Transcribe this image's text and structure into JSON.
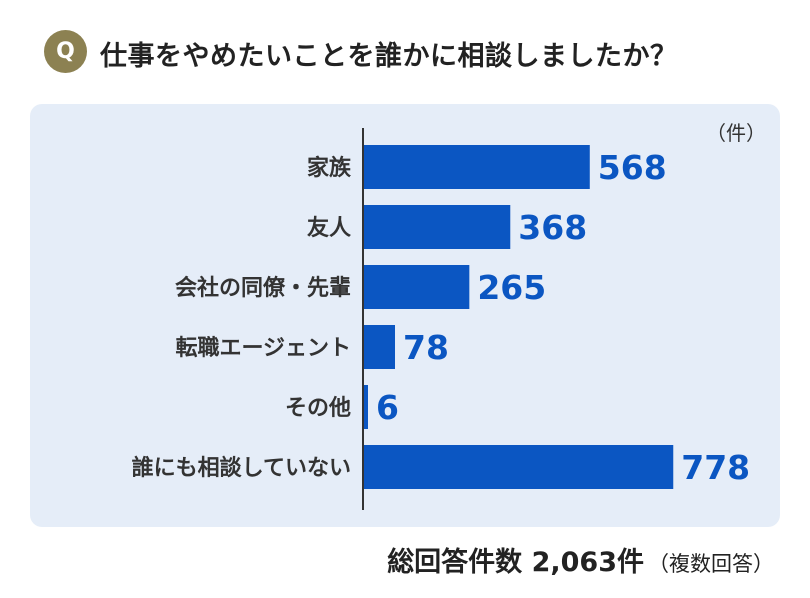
{
  "question": {
    "badge": "Q",
    "text": "仕事をやめたいことを誰かに相談しましたか？"
  },
  "footer": {
    "total": "総回答件数 2,063件",
    "note": "（複数回答）"
  },
  "colors": {
    "bar": "#0b56c2",
    "value_label": "#0b56c2",
    "panel_background": "#e5edf8",
    "badge": "#8c8152"
  },
  "chart_data": {
    "type": "bar",
    "orientation": "horizontal",
    "unit_label": "（件）",
    "categories": [
      "家族",
      "友人",
      "会社の同僚・先輩",
      "転職エージェント",
      "その他",
      "誰にも相談していない"
    ],
    "values": [
      568,
      368,
      265,
      78,
      6,
      778
    ],
    "xlim": [
      0,
      800
    ],
    "grid": false,
    "legend": "none",
    "title": "",
    "xlabel": "",
    "ylabel": ""
  }
}
